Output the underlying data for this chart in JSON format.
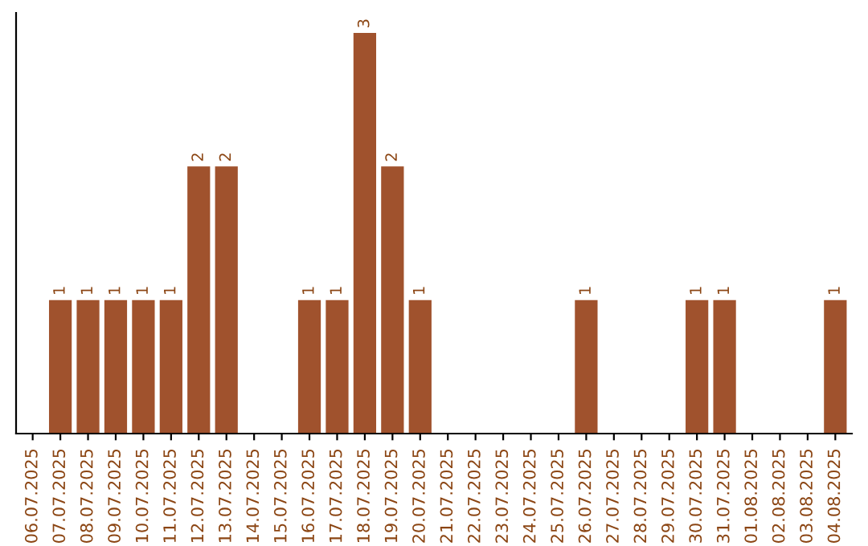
{
  "chart_data": {
    "type": "bar",
    "categories": [
      "06.07.2025",
      "07.07.2025",
      "08.07.2025",
      "09.07.2025",
      "10.07.2025",
      "11.07.2025",
      "12.07.2025",
      "13.07.2025",
      "14.07.2025",
      "15.07.2025",
      "16.07.2025",
      "17.07.2025",
      "18.07.2025",
      "19.07.2025",
      "20.07.2025",
      "21.07.2025",
      "22.07.2025",
      "23.07.2025",
      "24.07.2025",
      "25.07.2025",
      "26.07.2025",
      "27.07.2025",
      "28.07.2025",
      "29.07.2025",
      "30.07.2025",
      "31.07.2025",
      "01.08.2025",
      "02.08.2025",
      "03.08.2025",
      "04.08.2025"
    ],
    "values": [
      0,
      1,
      1,
      1,
      1,
      1,
      2,
      2,
      0,
      0,
      1,
      1,
      3,
      2,
      1,
      0,
      0,
      0,
      0,
      0,
      1,
      0,
      0,
      0,
      1,
      1,
      0,
      0,
      0,
      1
    ],
    "value_labels": [
      null,
      "1",
      "1",
      "1",
      "1",
      "1",
      "2",
      "2",
      null,
      null,
      "1",
      "1",
      "3",
      "2",
      "1",
      null,
      null,
      null,
      null,
      null,
      "1",
      null,
      null,
      null,
      "1",
      "1",
      null,
      null,
      null,
      "1"
    ],
    "color": "#a0522d",
    "tick_labels": "x",
    "grid": false,
    "legend": false
  }
}
